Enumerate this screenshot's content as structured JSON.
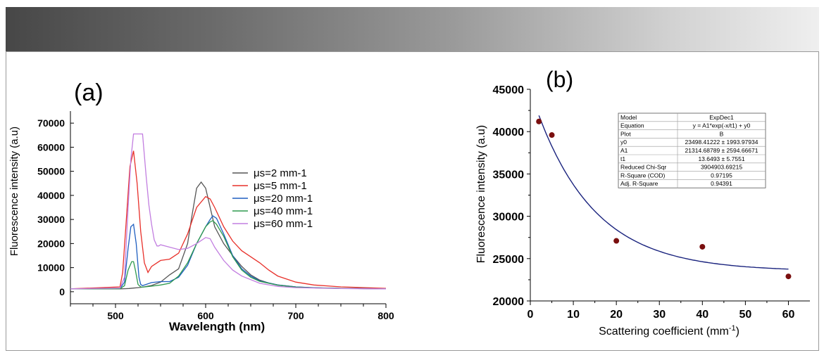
{
  "chart_data": [
    {
      "type": "line",
      "panel_label": "(a)",
      "xlabel": "Wavelength (nm)",
      "ylabel": "Fluorescence intensity (a.u)",
      "xlim": [
        450,
        800
      ],
      "ylim": [
        -5000,
        75000
      ],
      "xticks": [
        500,
        600,
        700,
        800
      ],
      "yticks": [
        0,
        10000,
        20000,
        30000,
        40000,
        50000,
        60000,
        70000
      ],
      "legend_position": "center-right",
      "series": [
        {
          "name": "μs=2 mm-1",
          "color": "#555555",
          "x": [
            450,
            505,
            510,
            515,
            520,
            525,
            530,
            540,
            550,
            560,
            570,
            580,
            585,
            590,
            595,
            600,
            605,
            610,
            620,
            630,
            640,
            650,
            660,
            670,
            680,
            700,
            720,
            750,
            800
          ],
          "y": [
            1200,
            1200,
            1250,
            1350,
            1500,
            1700,
            1900,
            2600,
            4000,
            7000,
            9500,
            20000,
            32000,
            43000,
            45500,
            43000,
            35000,
            27000,
            20000,
            15000,
            10500,
            7000,
            4800,
            3600,
            2800,
            2000,
            1600,
            1400,
            1200
          ]
        },
        {
          "name": "μs=5 mm-1",
          "color": "#e8302a",
          "x": [
            450,
            505,
            508,
            512,
            516,
            520,
            524,
            528,
            532,
            536,
            540,
            550,
            560,
            570,
            580,
            590,
            600,
            605,
            610,
            620,
            630,
            640,
            650,
            660,
            670,
            680,
            700,
            720,
            750,
            800
          ],
          "y": [
            1200,
            2000,
            8000,
            30000,
            52000,
            58500,
            45000,
            25000,
            12000,
            8000,
            10500,
            13000,
            13500,
            16000,
            24000,
            35000,
            39500,
            38500,
            35000,
            27000,
            21000,
            17000,
            14500,
            12000,
            9000,
            6500,
            4000,
            2800,
            2000,
            1400
          ]
        },
        {
          "name": "μs=20 mm-1",
          "color": "#1f5fc0",
          "x": [
            450,
            505,
            510,
            514,
            517,
            520,
            523,
            526,
            528,
            530,
            540,
            550,
            560,
            570,
            580,
            590,
            600,
            605,
            608,
            612,
            620,
            630,
            640,
            650,
            660,
            680,
            700,
            720,
            750,
            800
          ],
          "y": [
            1200,
            1300,
            4000,
            18000,
            27000,
            28000,
            20000,
            6000,
            3000,
            2500,
            3800,
            4200,
            4200,
            6000,
            11000,
            20000,
            27000,
            30000,
            31500,
            30500,
            24000,
            15000,
            9500,
            6500,
            4500,
            2800,
            2000,
            1700,
            1400,
            1200
          ]
        },
        {
          "name": "μs=40 mm-1",
          "color": "#2e9a4e",
          "x": [
            450,
            505,
            510,
            514,
            518,
            520,
            522,
            525,
            528,
            530,
            540,
            550,
            560,
            570,
            580,
            590,
            600,
            605,
            608,
            612,
            620,
            630,
            640,
            650,
            660,
            680,
            700,
            720,
            750,
            800
          ],
          "y": [
            1200,
            1250,
            2500,
            9000,
            12500,
            12500,
            9000,
            3000,
            2000,
            1900,
            2300,
            2800,
            3500,
            6500,
            12000,
            20000,
            27000,
            29000,
            29500,
            28000,
            23000,
            14500,
            9000,
            6000,
            4300,
            2700,
            1900,
            1600,
            1400,
            1200
          ]
        },
        {
          "name": "μs=60 mm-1",
          "color": "#c27ee0",
          "x": [
            450,
            505,
            510,
            514,
            517,
            520,
            524,
            530,
            534,
            537,
            540,
            543,
            546,
            548,
            550,
            560,
            570,
            580,
            590,
            600,
            605,
            610,
            620,
            630,
            640,
            660,
            680,
            700,
            750,
            800
          ],
          "y": [
            1200,
            1500,
            6000,
            35000,
            55000,
            65500,
            65500,
            65500,
            48000,
            36000,
            28000,
            21500,
            19000,
            19000,
            19500,
            18500,
            17500,
            18000,
            20000,
            22500,
            22000,
            18500,
            13000,
            9000,
            6500,
            3500,
            2200,
            1700,
            1300,
            1200
          ]
        }
      ]
    },
    {
      "type": "scatter",
      "panel_label": "(b)",
      "xlabel": "Scattering coefficient (mm",
      "xlabel_sup": "-1",
      "xlabel_end": ")",
      "ylabel": "Fluorescence intensity (a.u)",
      "xlim": [
        0,
        65
      ],
      "ylim": [
        20000,
        45000
      ],
      "xticks": [
        0,
        10,
        20,
        30,
        40,
        50,
        60
      ],
      "yticks": [
        20000,
        25000,
        30000,
        35000,
        40000,
        45000
      ],
      "points": {
        "name": "data",
        "color": "#7a0f0f",
        "x": [
          2,
          5,
          20,
          40,
          60
        ],
        "y": [
          41200,
          39600,
          27100,
          26400,
          22900
        ]
      },
      "fit": {
        "model": "ExpDec1",
        "color": "#1a237e",
        "y0": 23498.41222,
        "A1": 21314.68789,
        "t1": 13.6493,
        "x_start": 2,
        "x_end": 60
      },
      "fit_table": [
        [
          "Model",
          "ExpDec1"
        ],
        [
          "Equation",
          "y = A1*exp(-x/t1) + y0"
        ],
        [
          "Plot",
          "B"
        ],
        [
          "y0",
          "23498.41222 ± 1993.97934"
        ],
        [
          "A1",
          "21314.68789 ± 2594.66671"
        ],
        [
          "t1",
          "13.6493 ± 5.7551"
        ],
        [
          "Reduced Chi-Sqr",
          "3904903.69215"
        ],
        [
          "R-Square (COD)",
          "0.97195"
        ],
        [
          "Adj. R-Square",
          "0.94391"
        ]
      ]
    }
  ]
}
